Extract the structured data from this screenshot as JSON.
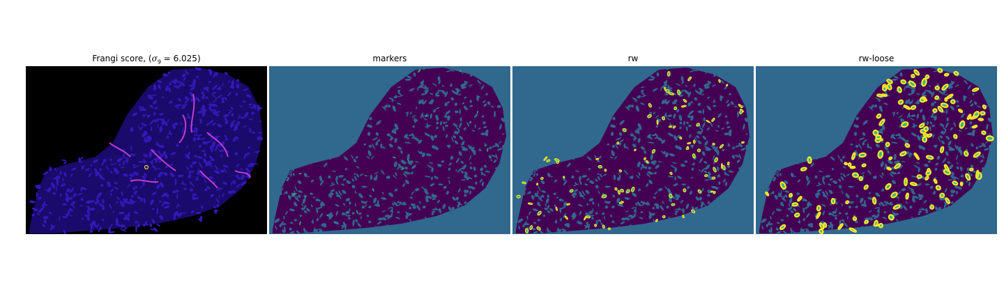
{
  "figure": {
    "panels": [
      {
        "id": "frangi",
        "title": "Frangi score, (",
        "title_math": "σ",
        "title_sub": "9",
        "title_tail": " = 6.025)"
      },
      {
        "id": "markers",
        "title": "markers"
      },
      {
        "id": "rw",
        "title": "rw"
      },
      {
        "id": "rw_loose",
        "title": "rw-loose"
      }
    ],
    "colors": {
      "frangi_background": "#000000",
      "frangi_tissue": "#1a0a6b",
      "frangi_blob": "#3318b8",
      "frangi_hot": "#c23dd0",
      "seg_background": "#31688e",
      "seg_tissue": "#440154",
      "seg_marker": "#35b779",
      "seg_label": "#fde725"
    }
  }
}
